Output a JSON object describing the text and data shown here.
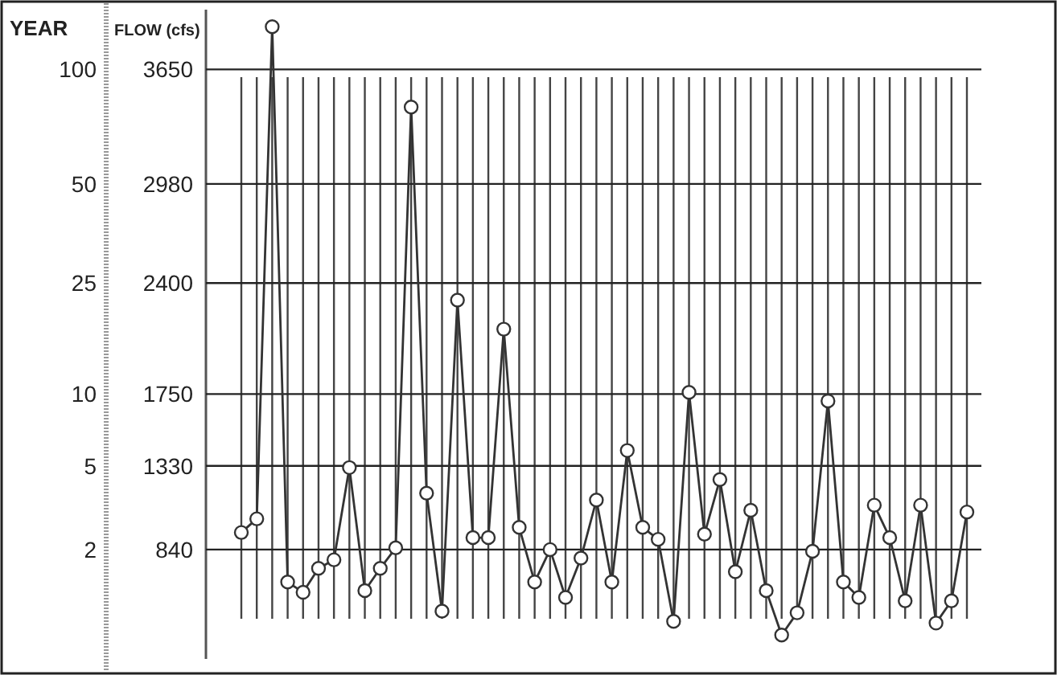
{
  "chart_data": {
    "type": "line",
    "ylabel": "FLOW (cfs)",
    "annotations": [
      "YEAR",
      "100",
      "50",
      "25",
      "10",
      "5",
      "2"
    ],
    "categories": [
      null,
      null,
      null,
      null,
      null,
      null,
      null,
      null,
      null,
      null,
      null,
      null,
      null,
      null,
      null,
      null,
      null,
      null,
      null,
      null,
      null,
      null,
      null,
      null,
      null,
      null,
      null,
      null,
      null,
      null,
      null,
      null,
      null,
      null,
      null,
      null,
      null,
      null,
      null,
      null,
      null,
      null,
      null,
      null,
      null,
      null,
      null,
      null
    ],
    "values": [
      940,
      1020,
      3900,
      650,
      590,
      730,
      780,
      1320,
      600,
      730,
      850,
      3430,
      1170,
      480,
      2300,
      910,
      910,
      2130,
      970,
      650,
      840,
      560,
      790,
      1130,
      650,
      1420,
      970,
      900,
      420,
      1760,
      930,
      1250,
      710,
      1070,
      600,
      340,
      470,
      830,
      1710,
      650,
      560,
      1100,
      910,
      540,
      1100,
      410,
      540,
      1060
    ],
    "color": "#333333",
    "marker": "circle",
    "grid": "x",
    "ylim": [
      200,
      4000
    ],
    "yticks": [
      840,
      1330,
      1750,
      2400,
      2980,
      3650
    ],
    "ref_lines": [
      {
        "axis": "y",
        "value": 3650,
        "color": "#222222"
      },
      {
        "axis": "y",
        "value": 2980,
        "color": "#222222"
      },
      {
        "axis": "y",
        "value": 2400,
        "color": "#222222"
      },
      {
        "axis": "y",
        "value": 1750,
        "color": "#222222"
      },
      {
        "axis": "y",
        "value": 1330,
        "color": "#222222"
      },
      {
        "axis": "y",
        "value": 840,
        "color": "#222222"
      }
    ]
  }
}
